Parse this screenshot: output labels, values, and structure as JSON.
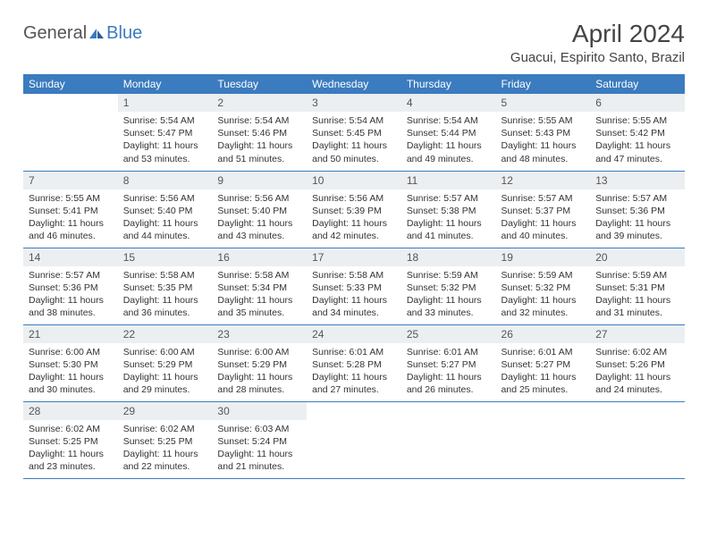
{
  "logo": {
    "text1": "General",
    "text2": "Blue",
    "icon_color": "#3b7bbf"
  },
  "title": "April 2024",
  "location": "Guacui, Espirito Santo, Brazil",
  "colors": {
    "header_bg": "#3b7bbf",
    "header_fg": "#ffffff",
    "daynum_bg": "#eceff1",
    "rule": "#3b7bbf",
    "text": "#333333",
    "page_bg": "#ffffff"
  },
  "weekdays": [
    "Sunday",
    "Monday",
    "Tuesday",
    "Wednesday",
    "Thursday",
    "Friday",
    "Saturday"
  ],
  "weeks": [
    [
      {
        "day": null
      },
      {
        "day": 1,
        "sunrise": "5:54 AM",
        "sunset": "5:47 PM",
        "daylight": "11 hours and 53 minutes."
      },
      {
        "day": 2,
        "sunrise": "5:54 AM",
        "sunset": "5:46 PM",
        "daylight": "11 hours and 51 minutes."
      },
      {
        "day": 3,
        "sunrise": "5:54 AM",
        "sunset": "5:45 PM",
        "daylight": "11 hours and 50 minutes."
      },
      {
        "day": 4,
        "sunrise": "5:54 AM",
        "sunset": "5:44 PM",
        "daylight": "11 hours and 49 minutes."
      },
      {
        "day": 5,
        "sunrise": "5:55 AM",
        "sunset": "5:43 PM",
        "daylight": "11 hours and 48 minutes."
      },
      {
        "day": 6,
        "sunrise": "5:55 AM",
        "sunset": "5:42 PM",
        "daylight": "11 hours and 47 minutes."
      }
    ],
    [
      {
        "day": 7,
        "sunrise": "5:55 AM",
        "sunset": "5:41 PM",
        "daylight": "11 hours and 46 minutes."
      },
      {
        "day": 8,
        "sunrise": "5:56 AM",
        "sunset": "5:40 PM",
        "daylight": "11 hours and 44 minutes."
      },
      {
        "day": 9,
        "sunrise": "5:56 AM",
        "sunset": "5:40 PM",
        "daylight": "11 hours and 43 minutes."
      },
      {
        "day": 10,
        "sunrise": "5:56 AM",
        "sunset": "5:39 PM",
        "daylight": "11 hours and 42 minutes."
      },
      {
        "day": 11,
        "sunrise": "5:57 AM",
        "sunset": "5:38 PM",
        "daylight": "11 hours and 41 minutes."
      },
      {
        "day": 12,
        "sunrise": "5:57 AM",
        "sunset": "5:37 PM",
        "daylight": "11 hours and 40 minutes."
      },
      {
        "day": 13,
        "sunrise": "5:57 AM",
        "sunset": "5:36 PM",
        "daylight": "11 hours and 39 minutes."
      }
    ],
    [
      {
        "day": 14,
        "sunrise": "5:57 AM",
        "sunset": "5:36 PM",
        "daylight": "11 hours and 38 minutes."
      },
      {
        "day": 15,
        "sunrise": "5:58 AM",
        "sunset": "5:35 PM",
        "daylight": "11 hours and 36 minutes."
      },
      {
        "day": 16,
        "sunrise": "5:58 AM",
        "sunset": "5:34 PM",
        "daylight": "11 hours and 35 minutes."
      },
      {
        "day": 17,
        "sunrise": "5:58 AM",
        "sunset": "5:33 PM",
        "daylight": "11 hours and 34 minutes."
      },
      {
        "day": 18,
        "sunrise": "5:59 AM",
        "sunset": "5:32 PM",
        "daylight": "11 hours and 33 minutes."
      },
      {
        "day": 19,
        "sunrise": "5:59 AM",
        "sunset": "5:32 PM",
        "daylight": "11 hours and 32 minutes."
      },
      {
        "day": 20,
        "sunrise": "5:59 AM",
        "sunset": "5:31 PM",
        "daylight": "11 hours and 31 minutes."
      }
    ],
    [
      {
        "day": 21,
        "sunrise": "6:00 AM",
        "sunset": "5:30 PM",
        "daylight": "11 hours and 30 minutes."
      },
      {
        "day": 22,
        "sunrise": "6:00 AM",
        "sunset": "5:29 PM",
        "daylight": "11 hours and 29 minutes."
      },
      {
        "day": 23,
        "sunrise": "6:00 AM",
        "sunset": "5:29 PM",
        "daylight": "11 hours and 28 minutes."
      },
      {
        "day": 24,
        "sunrise": "6:01 AM",
        "sunset": "5:28 PM",
        "daylight": "11 hours and 27 minutes."
      },
      {
        "day": 25,
        "sunrise": "6:01 AM",
        "sunset": "5:27 PM",
        "daylight": "11 hours and 26 minutes."
      },
      {
        "day": 26,
        "sunrise": "6:01 AM",
        "sunset": "5:27 PM",
        "daylight": "11 hours and 25 minutes."
      },
      {
        "day": 27,
        "sunrise": "6:02 AM",
        "sunset": "5:26 PM",
        "daylight": "11 hours and 24 minutes."
      }
    ],
    [
      {
        "day": 28,
        "sunrise": "6:02 AM",
        "sunset": "5:25 PM",
        "daylight": "11 hours and 23 minutes."
      },
      {
        "day": 29,
        "sunrise": "6:02 AM",
        "sunset": "5:25 PM",
        "daylight": "11 hours and 22 minutes."
      },
      {
        "day": 30,
        "sunrise": "6:03 AM",
        "sunset": "5:24 PM",
        "daylight": "11 hours and 21 minutes."
      },
      {
        "day": null
      },
      {
        "day": null
      },
      {
        "day": null
      },
      {
        "day": null
      }
    ]
  ],
  "labels": {
    "sunrise": "Sunrise:",
    "sunset": "Sunset:",
    "daylight": "Daylight:"
  }
}
